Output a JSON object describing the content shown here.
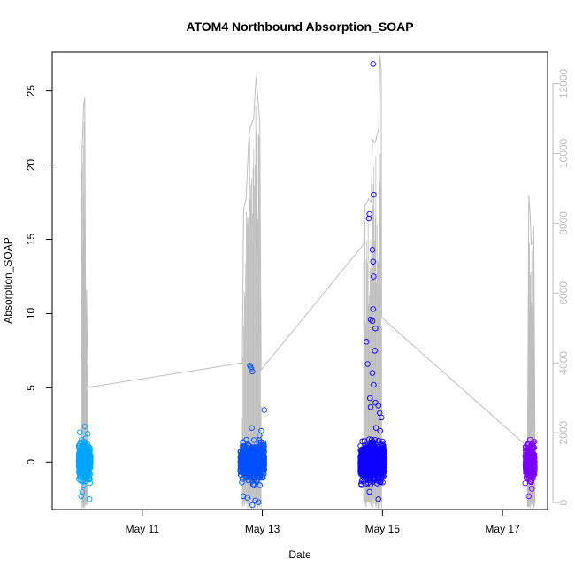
{
  "chart_data": {
    "type": "scatter",
    "title": "ATOM4 Northbound Absorption_SOAP",
    "xlabel": "Date",
    "ylabel": "Absorption_SOAP",
    "x_ticks": [
      "May 11",
      "May 13",
      "May 15",
      "May 17"
    ],
    "x_range_days": [
      "2014-05-09T12:00",
      "2014-05-17T18:00"
    ],
    "ylim": [
      -3.2,
      27.6
    ],
    "y_ticks": [
      0,
      5,
      10,
      15,
      20,
      25
    ],
    "y2lim": [
      -200,
      12900
    ],
    "y2_ticks": [
      0,
      2000,
      4000,
      6000,
      8000,
      10000,
      12000
    ],
    "y2_color": "#bebebe",
    "grid": false,
    "legend": "none",
    "series": [
      {
        "color": "#00a5ff",
        "center": "2014-05-10T01:00",
        "spread_days": 0.1,
        "count": 400,
        "outliers": [
          [
            0.0,
            2.4
          ],
          [
            -0.08,
            2.0
          ],
          [
            0.05,
            1.9
          ],
          [
            -0.06,
            -2.3
          ],
          [
            0.08,
            -2.5
          ],
          [
            0.02,
            1.6
          ],
          [
            -0.04,
            -2.0
          ]
        ]
      },
      {
        "color": "#0050ff",
        "center": "2014-05-12T20:00",
        "spread_days": 0.2,
        "count": 700,
        "outliers": [
          [
            -0.04,
            6.5
          ],
          [
            -0.02,
            6.3
          ],
          [
            0.0,
            6.1
          ],
          [
            -0.03,
            6.4
          ],
          [
            0.2,
            3.5
          ],
          [
            -0.01,
            2.3
          ],
          [
            0.15,
            2.1
          ],
          [
            -0.08,
            -2.4
          ],
          [
            0.0,
            -2.9
          ],
          [
            0.1,
            -2.7
          ],
          [
            -0.15,
            -2.3
          ],
          [
            0.05,
            -2.6
          ],
          [
            0.12,
            1.8
          ],
          [
            -0.1,
            1.5
          ]
        ]
      },
      {
        "color": "#0d00ff",
        "center": "2014-05-14T20:00",
        "spread_days": 0.2,
        "count": 900,
        "outliers": [
          [
            0.01,
            26.8
          ],
          [
            0.02,
            18.0
          ],
          [
            -0.05,
            16.7
          ],
          [
            -0.06,
            16.4
          ],
          [
            0.0,
            14.3
          ],
          [
            0.01,
            13.5
          ],
          [
            0.02,
            12.5
          ],
          [
            0.01,
            10.3
          ],
          [
            -0.03,
            9.6
          ],
          [
            0.0,
            9.5
          ],
          [
            0.05,
            9.0
          ],
          [
            -0.1,
            8.1
          ],
          [
            0.04,
            7.5
          ],
          [
            -0.08,
            6.6
          ],
          [
            0.0,
            6.0
          ],
          [
            0.02,
            5.2
          ],
          [
            -0.04,
            4.3
          ],
          [
            0.05,
            4.0
          ],
          [
            0.1,
            3.8
          ],
          [
            0.12,
            3.3
          ],
          [
            0.15,
            3.0
          ],
          [
            -0.03,
            3.7
          ],
          [
            0.06,
            2.3
          ],
          [
            0.1,
            -2.5
          ],
          [
            -0.05,
            -2.0
          ],
          [
            0.13,
            2.1
          ]
        ]
      },
      {
        "color": "#7a00ff",
        "center": "2014-05-17T11:00",
        "spread_days": 0.08,
        "count": 250,
        "outliers": [
          [
            0.0,
            1.5
          ],
          [
            -0.02,
            -2.3
          ],
          [
            0.03,
            -1.8
          ],
          [
            -0.04,
            1.2
          ]
        ]
      }
    ],
    "secondary_line": {
      "color": "#bebebe",
      "points": [
        [
          "2014-05-09T23:30",
          5800
        ],
        [
          "2014-05-09T23:45",
          10200
        ],
        [
          "2014-05-10T00:00",
          10200
        ],
        [
          "2014-05-10T00:15",
          10600
        ],
        [
          "2014-05-10T00:30",
          11300
        ],
        [
          "2014-05-10T00:45",
          11500
        ],
        [
          "2014-05-10T01:00",
          11600
        ],
        [
          "2014-05-10T01:30",
          2500
        ],
        [
          "2014-05-10T01:45",
          6100
        ],
        [
          "2014-05-10T02:10",
          3300
        ],
        [
          "2014-05-12T16:00",
          4000
        ],
        [
          "2014-05-12T16:30",
          8400
        ],
        [
          "2014-05-12T17:30",
          8700
        ],
        [
          "2014-05-12T18:30",
          10300
        ],
        [
          "2014-05-12T19:00",
          10700
        ],
        [
          "2014-05-12T19:30",
          10800
        ],
        [
          "2014-05-12T20:30",
          11000
        ],
        [
          "2014-05-12T21:30",
          12200
        ],
        [
          "2014-05-12T23:00",
          10900
        ],
        [
          "2014-05-12T23:30",
          3800
        ],
        [
          "2014-05-14T16:30",
          7400
        ],
        [
          "2014-05-14T17:00",
          8500
        ],
        [
          "2014-05-14T18:30",
          8700
        ],
        [
          "2014-05-14T19:30",
          8600
        ],
        [
          "2014-05-14T20:00",
          10400
        ],
        [
          "2014-05-14T21:00",
          10300
        ],
        [
          "2014-05-14T22:30",
          10700
        ],
        [
          "2014-05-14T23:00",
          12800
        ],
        [
          "2014-05-14T23:30",
          12400
        ],
        [
          "2014-05-14T23:40",
          5300
        ],
        [
          "2014-05-17T10:00",
          1600
        ],
        [
          "2014-05-17T10:30",
          8800
        ],
        [
          "2014-05-17T11:00",
          8300
        ],
        [
          "2014-05-17T11:30",
          7400
        ],
        [
          "2014-05-17T12:00",
          7400
        ],
        [
          "2014-05-17T12:30",
          7900
        ],
        [
          "2014-05-17T13:00",
          1300
        ]
      ],
      "spike_bands": [
        [
          "2014-05-09T23:30",
          "2014-05-10T02:10"
        ],
        [
          "2014-05-12T16:00",
          "2014-05-12T23:30"
        ],
        [
          "2014-05-14T16:30",
          "2014-05-14T23:40"
        ],
        [
          "2014-05-17T10:00",
          "2014-05-17T13:00"
        ]
      ],
      "band_floor": -200
    }
  }
}
